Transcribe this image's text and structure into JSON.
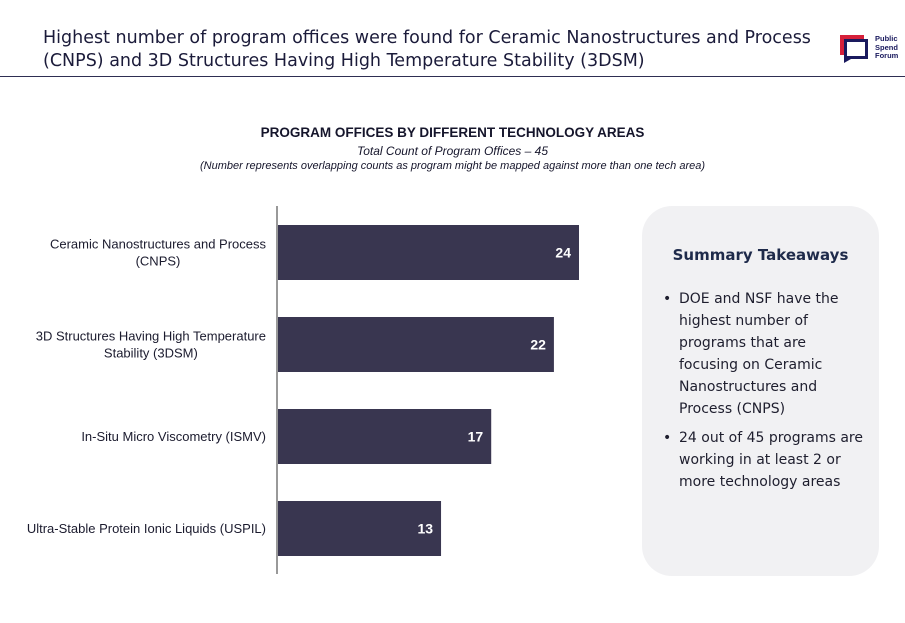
{
  "header": {
    "title": "Highest number of program offices were found for Ceramic Nanostructures and Process (CNPS) and 3D Structures Having High Temperature Stability (3DSM)",
    "logo_lines": [
      "Public",
      "Spend",
      "Forum"
    ]
  },
  "chart_data": {
    "type": "bar",
    "orientation": "horizontal",
    "title": "PROGRAM OFFICES BY DIFFERENT TECHNOLOGY AREAS",
    "subtitle": "Total Count of Program Offices – 45",
    "note": "(Number represents overlapping counts as program might be mapped against more than one tech area)",
    "categories": [
      [
        "Ceramic Nanostructures and Process",
        "(CNPS)"
      ],
      [
        "3D Structures Having High Temperature",
        "Stability (3DSM)"
      ],
      [
        "In-Situ Micro Viscometry (ISMV)"
      ],
      [
        "Ultra-Stable Protein Ionic Liquids (USPIL)"
      ]
    ],
    "values": [
      24,
      22,
      17,
      13
    ],
    "xlim": [
      0,
      24
    ],
    "bar_color": "#393650",
    "label_color": "#ffffff",
    "grid": false
  },
  "summary": {
    "title": "Summary Takeaways",
    "bullet": "•",
    "items": [
      "DOE and NSF have the highest number of programs that are focusing on Ceramic Nanostructures and Process (CNPS)",
      "24 out of 45 programs are working in at least 2 or more technology areas"
    ]
  },
  "colors": {
    "accent_navy": "#1a1a5e",
    "accent_red": "#d6203a"
  }
}
